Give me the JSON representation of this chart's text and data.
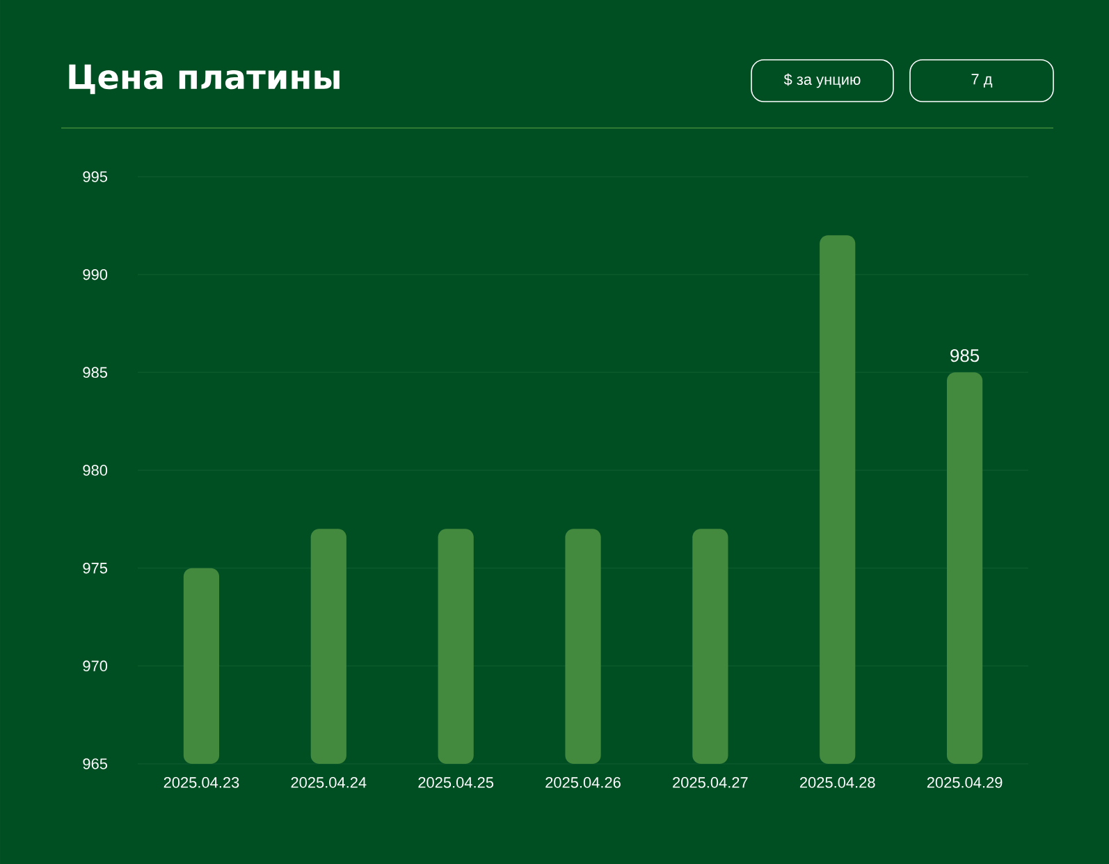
{
  "chart_data": {
    "type": "bar",
    "title": "Цена платины",
    "annotations": [
      "$ за унцию",
      "7 д"
    ],
    "categories": [
      "2025.04.23",
      "2025.04.24",
      "2025.04.25",
      "2025.04.26",
      "2025.04.27",
      "2025.04.28",
      "2025.04.29"
    ],
    "values": [
      975,
      977,
      977,
      977,
      977,
      992,
      985
    ],
    "value_labels": [
      null,
      null,
      null,
      null,
      null,
      null,
      "985"
    ],
    "color": "#448a3e",
    "ylim": [
      965,
      995
    ],
    "yticks": [
      965,
      970,
      975,
      980,
      985,
      990,
      995
    ],
    "grid": "y"
  }
}
